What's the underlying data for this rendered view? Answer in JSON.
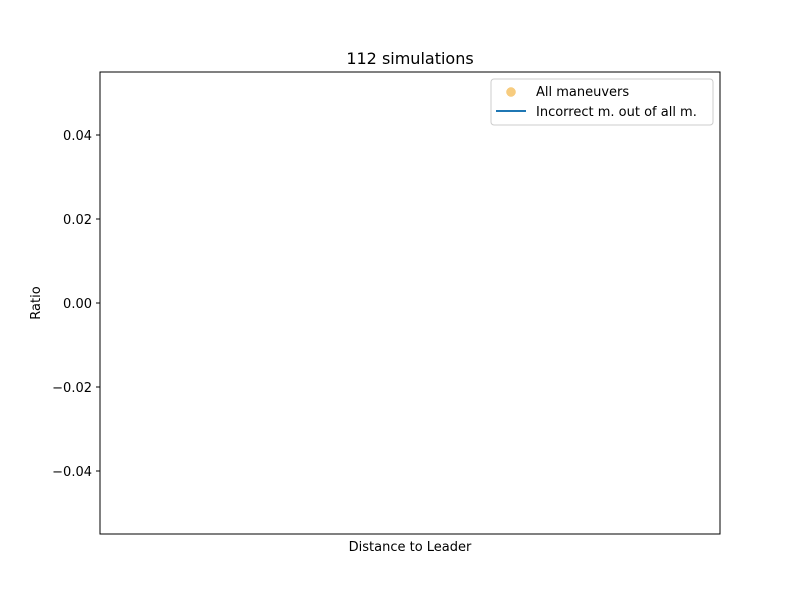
{
  "chart_data": {
    "type": "scatter",
    "title": "112 simulations",
    "xlabel": "Distance to Leader",
    "ylabel": "Ratio",
    "ylim": [
      -0.055,
      0.055
    ],
    "yticks": [
      -0.04,
      -0.02,
      0.0,
      0.02,
      0.04
    ],
    "ytick_labels": [
      "−0.04",
      "−0.02",
      "0.00",
      "0.02",
      "0.04"
    ],
    "xticks": [],
    "grid": false,
    "legend_position": "top-right",
    "series": [
      {
        "name": "All maneuvers",
        "kind": "scatter",
        "color": "#f5bf5f",
        "points": []
      },
      {
        "name": "Incorrect m. out of all m.",
        "kind": "line",
        "color": "#1f77b4",
        "points": []
      }
    ]
  }
}
